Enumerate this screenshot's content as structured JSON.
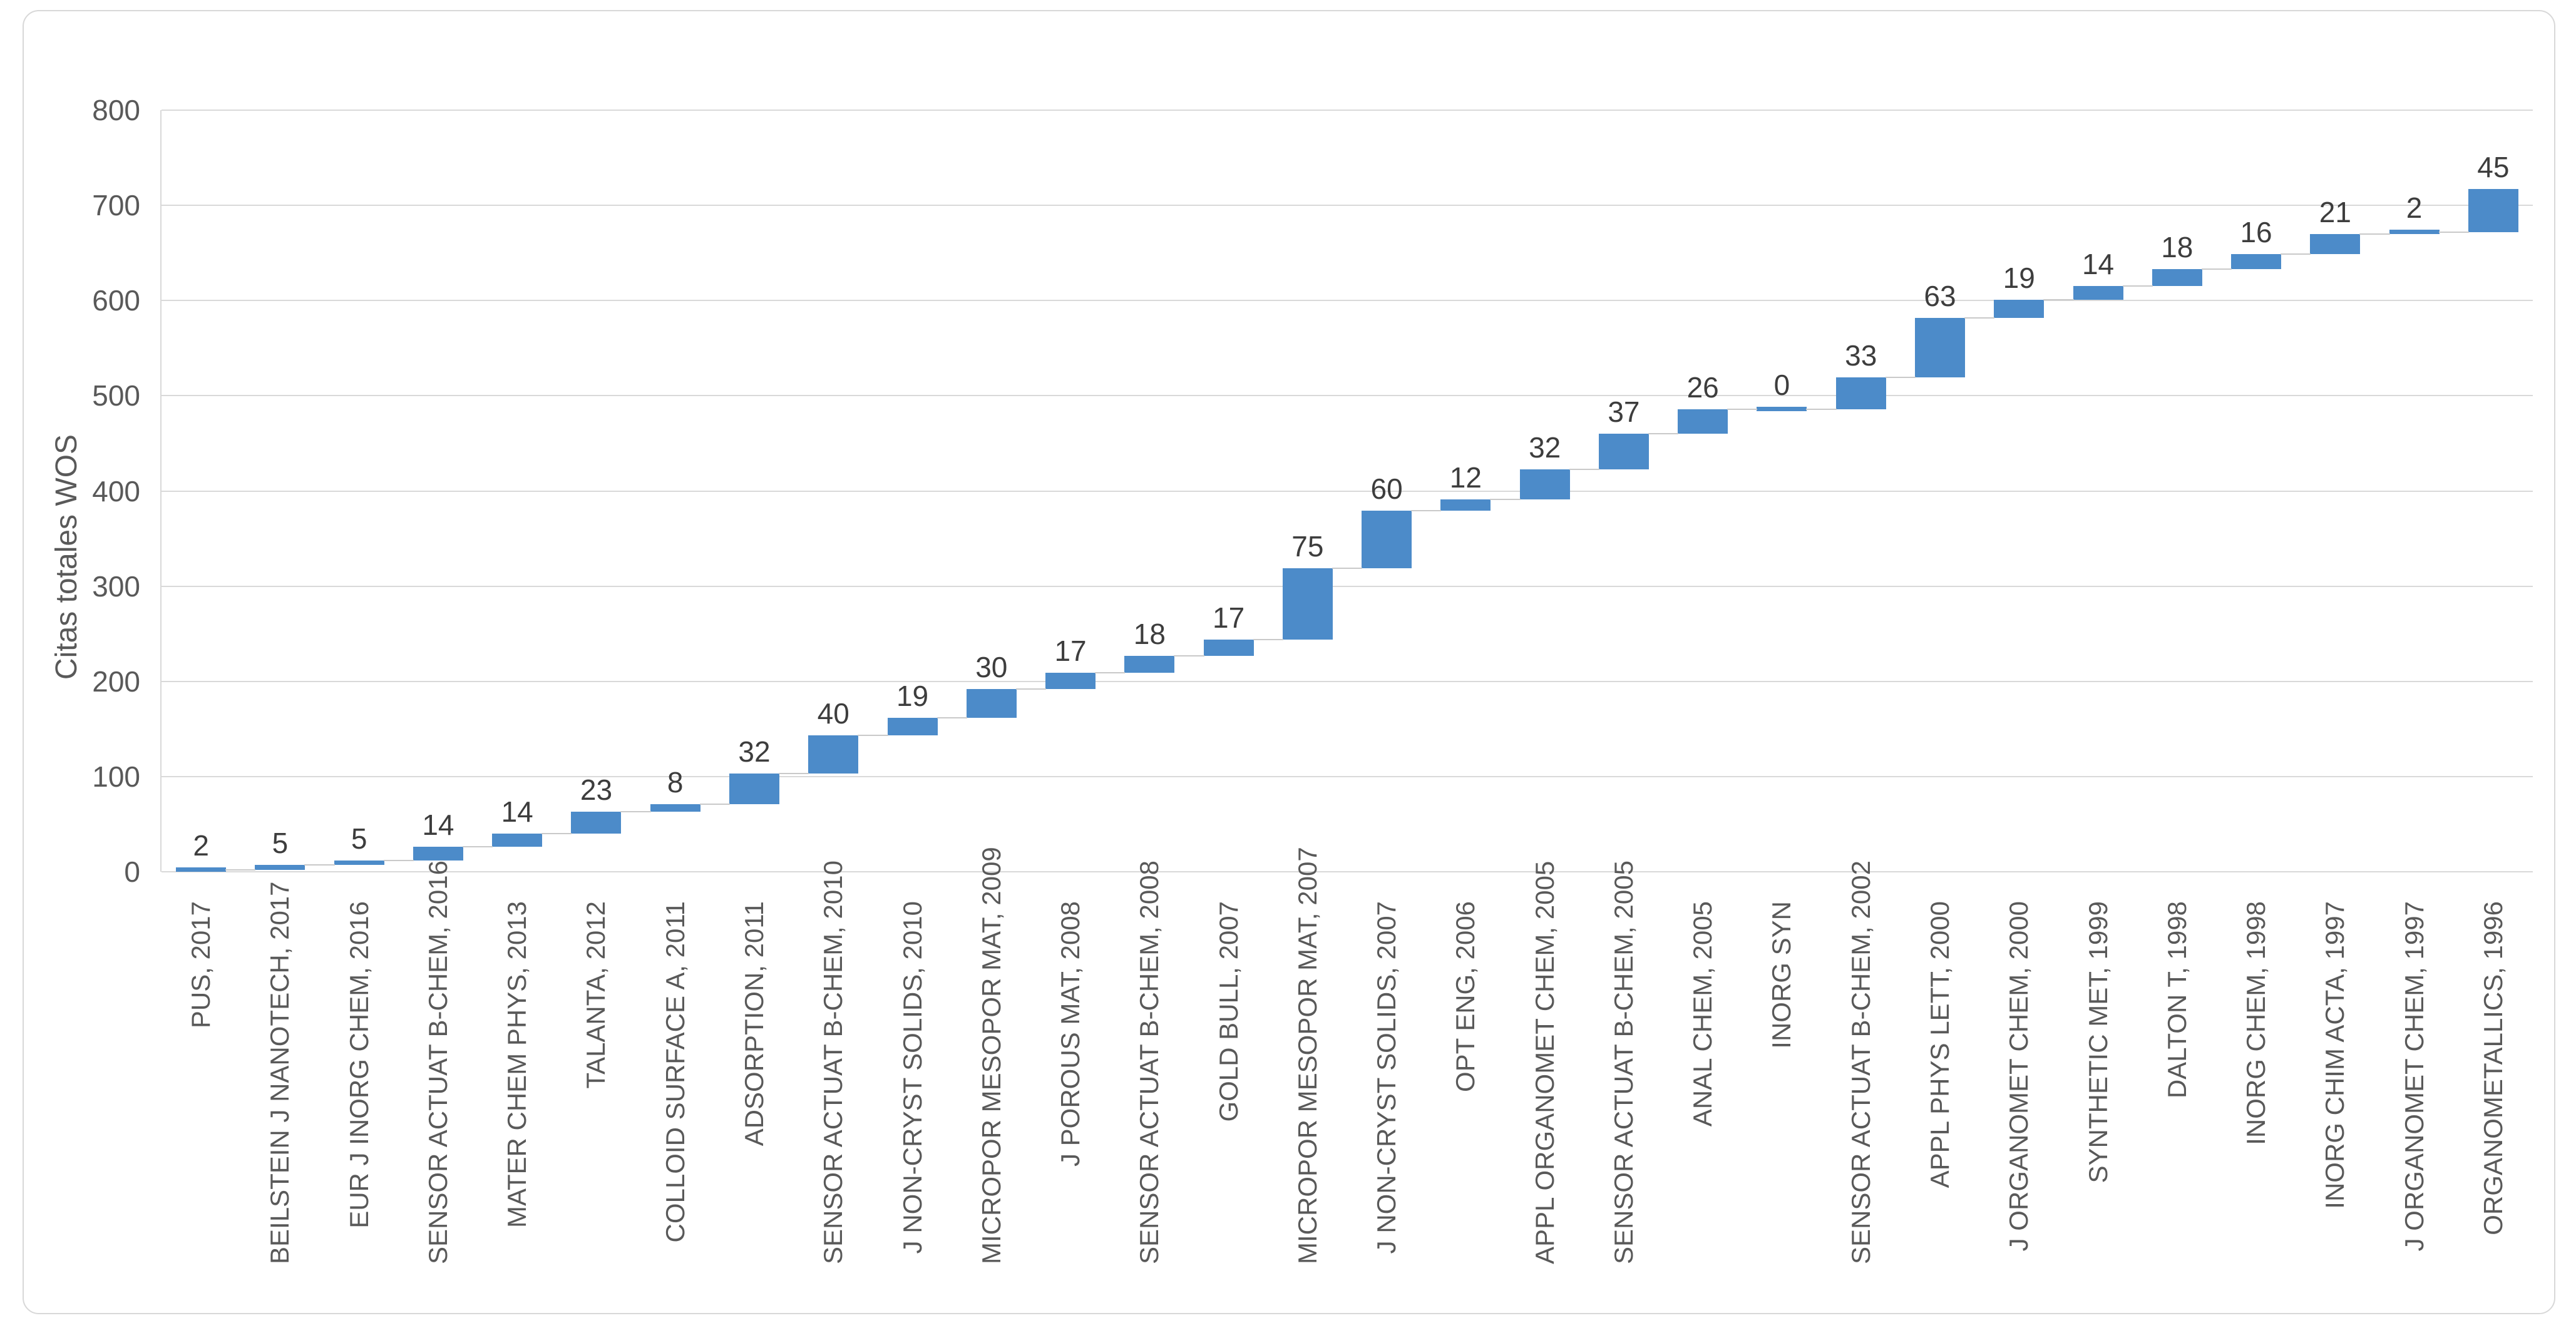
{
  "chart_data": {
    "type": "bar",
    "subtype": "waterfall-cumulative",
    "title": "",
    "xlabel": "",
    "ylabel": "Citas totales WOS",
    "ylim": [
      0,
      800
    ],
    "ytick_step": 100,
    "yticks": [
      0,
      100,
      200,
      300,
      400,
      500,
      600,
      700,
      800
    ],
    "grid": true,
    "legend": false,
    "bar_color": "#4c8bc9",
    "gridline_color": "#d9d9d9",
    "connector_color": "#c9c9c9",
    "tick_label_color": "#595959",
    "value_label_color": "#3d3d3d",
    "categories": [
      "PUS, 2017",
      "BEILSTEIN J NANOTECH, 2017",
      "EUR J INORG CHEM, 2016",
      "SENSOR ACTUAT B-CHEM, 2016",
      "MATER CHEM PHYS, 2013",
      "TALANTA, 2012",
      "COLLOID SURFACE A, 2011",
      "ADSORPTION, 2011",
      "SENSOR ACTUAT B-CHEM, 2010",
      "J NON-CRYST SOLIDS, 2010",
      "MICROPOR MESOPOR MAT, 2009",
      "J POROUS MAT, 2008",
      "SENSOR ACTUAT B-CHEM, 2008",
      "GOLD BULL, 2007",
      "MICROPOR MESOPOR MAT, 2007",
      "J NON-CRYST SOLIDS, 2007",
      "OPT ENG, 2006",
      "APPL ORGANOMET CHEM, 2005",
      "SENSOR ACTUAT B-CHEM, 2005",
      "ANAL CHEM, 2005",
      "INORG SYN",
      "SENSOR ACTUAT B-CHEM, 2002",
      "APPL PHYS LETT, 2000",
      "J ORGANOMET CHEM, 2000",
      "SYNTHETIC MET, 1999",
      "DALTON T, 1998",
      "INORG CHEM, 1998",
      "INORG CHIM ACTA, 1997",
      "J ORGANOMET CHEM, 1997",
      "ORGANOMETALLICS, 1996"
    ],
    "values": [
      2,
      5,
      5,
      14,
      14,
      23,
      8,
      32,
      40,
      19,
      30,
      17,
      18,
      17,
      75,
      60,
      12,
      32,
      37,
      26,
      0,
      33,
      63,
      19,
      14,
      18,
      16,
      21,
      2,
      45
    ],
    "cumulative": [
      2,
      7,
      12,
      26,
      40,
      63,
      71,
      103,
      143,
      162,
      192,
      209,
      227,
      244,
      319,
      379,
      391,
      423,
      460,
      486,
      486,
      519,
      582,
      601,
      615,
      633,
      649,
      670,
      672,
      717
    ],
    "cumulative_total": 717
  }
}
